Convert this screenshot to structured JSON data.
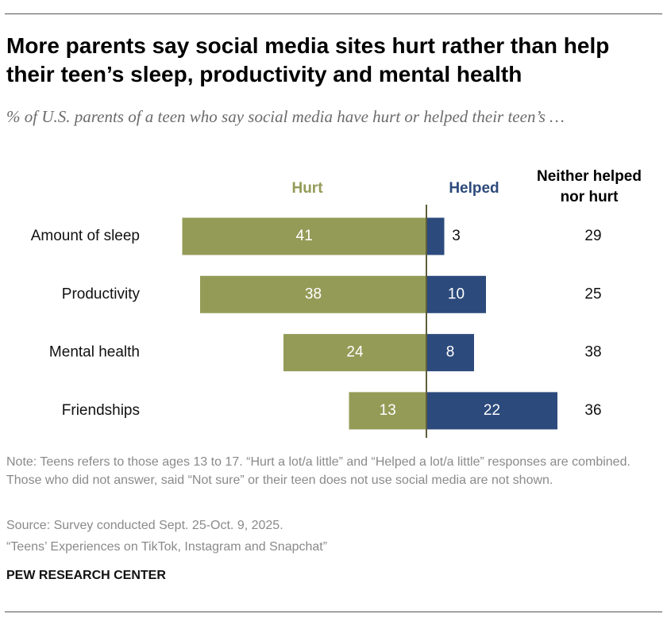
{
  "chart_data": {
    "type": "diverging-bar",
    "title": "More parents say social media sites hurt rather than help their teen’s sleep, productivity and mental health",
    "subtitle": "% of U.S. parents of a teen who say social media have hurt or helped their teen’s …",
    "categories": [
      "Amount of sleep",
      "Productivity",
      "Mental health",
      "Friendships"
    ],
    "series": [
      {
        "name": "Hurt",
        "color": "#949b57",
        "values": [
          41,
          38,
          24,
          13
        ]
      },
      {
        "name": "Helped",
        "color": "#2d4a7c",
        "values": [
          3,
          10,
          8,
          22
        ]
      },
      {
        "name": "Neither helped nor hurt",
        "values": [
          29,
          25,
          38,
          36
        ]
      }
    ],
    "note": "Note: Teens refers to those ages 13 to 17. “Hurt a lot/a little” and “Helped a lot/a little” responses are combined. Those who did not answer, said “Not sure” or their teen does not use social media are not shown.",
    "source": "Source: Survey conducted Sept. 25-Oct. 9, 2025.",
    "report": "“Teens’ Experiences on TikTok, Instagram and Snapchat”",
    "logo": "PEW RESEARCH CENTER"
  }
}
